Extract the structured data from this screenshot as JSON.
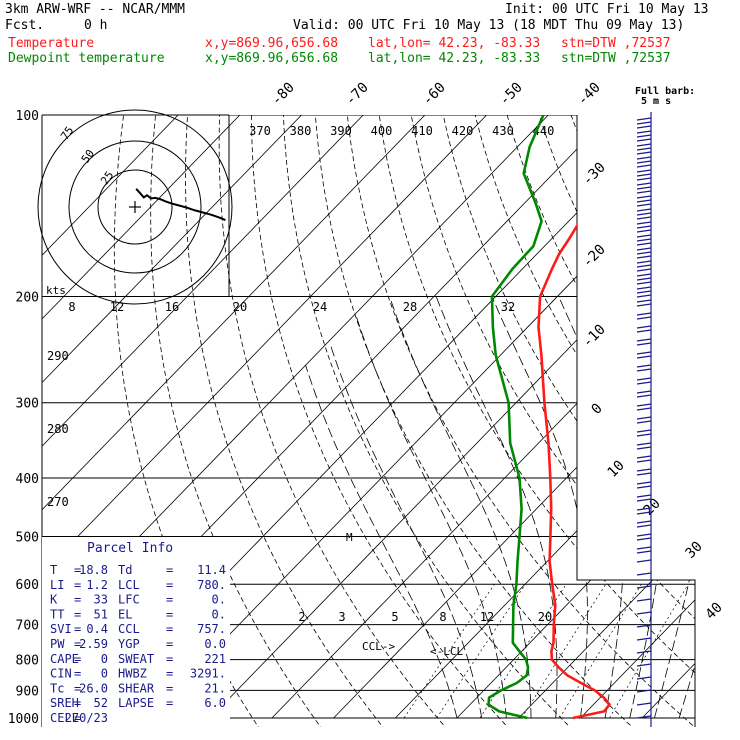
{
  "header": {
    "model_line": "3km ARW-WRF -- NCAR/MMM",
    "init_line": "Init: 00 UTC Fri 10 May 13",
    "fcst_label": "Fcst.",
    "fcst_value": "0 h",
    "valid_line": "Valid: 00 UTC Fri 10 May 13 (18 MDT Thu 09 May 13)"
  },
  "legend": [
    {
      "name": "Temperature",
      "xy": "x,y=869.96,656.68",
      "latlon": "lat,lon= 42.23, -83.33",
      "stn": "stn=DTW ,72537",
      "color": "#ff1a1a"
    },
    {
      "name": "Dewpoint temperature",
      "xy": "x,y=869.96,656.68",
      "latlon": "lat,lon= 42.23, -83.33",
      "stn": "stn=DTW ,72537",
      "color": "#008800"
    }
  ],
  "full_barb_label": "Full barb:",
  "full_barb_value": "5 m s",
  "hodograph": {
    "ring_labels": [
      "75",
      "50",
      "25"
    ],
    "units": "kts",
    "points": [
      [
        0.3,
        -1.2
      ],
      [
        1.5,
        0.8
      ],
      [
        2.2,
        2.0
      ],
      [
        3.0,
        1.2
      ],
      [
        4.0,
        2.4
      ],
      [
        5.0,
        2.2
      ],
      [
        6.2,
        2.6
      ],
      [
        7.5,
        3.4
      ],
      [
        9,
        4.2
      ],
      [
        11,
        5.0
      ],
      [
        13,
        5.8
      ],
      [
        15,
        6.8
      ],
      [
        17,
        7.6
      ],
      [
        19,
        8.4
      ],
      [
        21,
        9.4
      ],
      [
        22.6,
        10.4
      ]
    ]
  },
  "parcel_info": {
    "title": "Parcel Info",
    "rows": [
      [
        "T",
        "=",
        "18.8",
        "Td",
        "=",
        "11.4"
      ],
      [
        "LI",
        "=",
        "1.2",
        "LCL",
        "=",
        "780."
      ],
      [
        "K",
        "=",
        "33",
        "LFC",
        "=",
        "0."
      ],
      [
        "TT",
        "=",
        "51",
        "EL",
        "=",
        "0."
      ],
      [
        "SVI",
        "=",
        "0.4",
        "CCL",
        "=",
        "757."
      ],
      [
        "PW",
        "=",
        "2.59",
        "YGP",
        "=",
        "0.0"
      ],
      [
        "CAPE",
        "=",
        "0",
        "SWEAT",
        "=",
        "221"
      ],
      [
        "CIN",
        "=",
        "0",
        "HWBZ",
        "=",
        "3291."
      ],
      [
        "Tc",
        "=",
        "26.0",
        "SHEAR",
        "=",
        "21."
      ],
      [
        "SREH",
        "=",
        "52",
        "LAPSE",
        "=",
        "6.0"
      ],
      [
        "CELL",
        "=",
        "270/23",
        "",
        "",
        ""
      ]
    ]
  },
  "annotations": {
    "ccl": "CCL->",
    "lcl": "<-LCL",
    "m": "M"
  },
  "chart_data": {
    "type": "line",
    "subtype": "skew-T log-P diagram",
    "y_axis": {
      "scale": "log",
      "ylim": [
        1000,
        100
      ],
      "ticks": [
        100,
        200,
        300,
        400,
        500,
        600,
        700,
        800,
        900,
        1000
      ]
    },
    "isotherm_labels": [
      -80,
      -70,
      -60,
      -50,
      -40,
      -30,
      -20,
      -10,
      0,
      10,
      20,
      30,
      40
    ],
    "theta_labels_top": [
      370,
      380,
      390,
      400,
      410,
      420,
      430,
      440
    ],
    "theta_labels_left": [
      290,
      280,
      270
    ],
    "mixing_ratio_top": [
      8,
      12,
      16,
      20,
      24,
      28,
      32
    ],
    "mixing_ratio_low": [
      2,
      3,
      5,
      8,
      12,
      20
    ],
    "series": [
      {
        "name": "Temperature",
        "color": "#ff1a1a",
        "points": [
          [
            1000,
            18.8
          ],
          [
            975,
            22.8
          ],
          [
            950,
            22.6
          ],
          [
            925,
            20.6
          ],
          [
            900,
            18.0
          ],
          [
            875,
            14.6
          ],
          [
            850,
            11.2
          ],
          [
            825,
            8.6
          ],
          [
            800,
            6.2
          ],
          [
            775,
            4.8
          ],
          [
            750,
            3.8
          ],
          [
            700,
            1.0
          ],
          [
            650,
            -1.8
          ],
          [
            600,
            -5.6
          ],
          [
            550,
            -9.6
          ],
          [
            500,
            -13.4
          ],
          [
            450,
            -17.6
          ],
          [
            400,
            -22.6
          ],
          [
            350,
            -28.4
          ],
          [
            300,
            -35.4
          ],
          [
            250,
            -43.4
          ],
          [
            225,
            -48.2
          ],
          [
            200,
            -52.8
          ],
          [
            180,
            -55.2
          ],
          [
            170,
            -56.4
          ],
          [
            160,
            -57.2
          ],
          [
            150,
            -58.2
          ],
          [
            140,
            -58.6
          ],
          [
            125,
            -60.2
          ],
          [
            113,
            -60.8
          ],
          [
            100,
            -62.0
          ]
        ]
      },
      {
        "name": "Dewpoint temperature",
        "color": "#008800",
        "points": [
          [
            1000,
            11.4
          ],
          [
            975,
            5.8
          ],
          [
            950,
            3.0
          ],
          [
            925,
            2.0
          ],
          [
            900,
            2.8
          ],
          [
            875,
            4.2
          ],
          [
            850,
            4.6
          ],
          [
            825,
            3.6
          ],
          [
            800,
            2.0
          ],
          [
            775,
            -0.4
          ],
          [
            750,
            -2.8
          ],
          [
            700,
            -5.6
          ],
          [
            650,
            -8.6
          ],
          [
            600,
            -11.4
          ],
          [
            550,
            -14.8
          ],
          [
            500,
            -18.4
          ],
          [
            450,
            -22.4
          ],
          [
            400,
            -27.6
          ],
          [
            350,
            -34.6
          ],
          [
            300,
            -41.2
          ],
          [
            250,
            -50.8
          ],
          [
            225,
            -55.6
          ],
          [
            200,
            -60.6
          ],
          [
            180,
            -61.6
          ],
          [
            165,
            -61.8
          ],
          [
            150,
            -64.4
          ],
          [
            140,
            -68.2
          ],
          [
            125,
            -74.8
          ],
          [
            113,
            -78.0
          ],
          [
            100,
            -80.8
          ]
        ]
      }
    ]
  }
}
